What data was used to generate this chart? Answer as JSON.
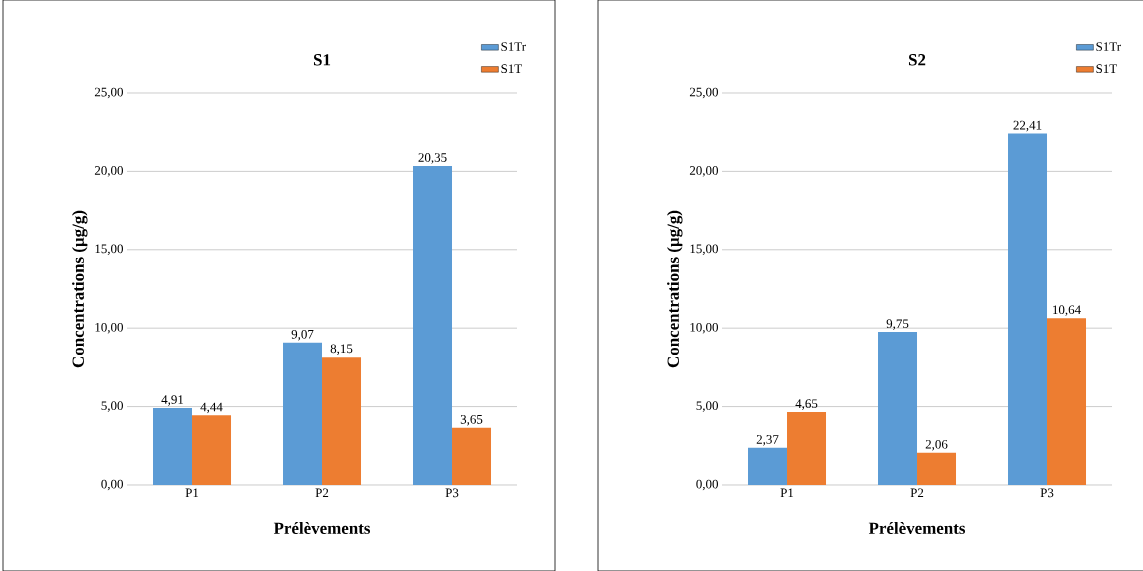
{
  "chart_data": [
    {
      "type": "bar",
      "title": "S1",
      "xlabel": "Prélèvements",
      "ylabel": "Concentrations (µg/g)",
      "categories": [
        "P1",
        "P2",
        "P3"
      ],
      "series": [
        {
          "name": "S1Tr",
          "color": "#5b9bd5",
          "values": [
            4.91,
            9.07,
            20.35
          ],
          "value_labels": [
            "4,91",
            "9,07",
            "20,35"
          ]
        },
        {
          "name": "S1T",
          "color": "#ed7d31",
          "values": [
            4.44,
            8.15,
            3.65
          ],
          "value_labels": [
            "4,44",
            "8,15",
            "3,65"
          ]
        }
      ],
      "ylim": [
        0,
        25
      ],
      "yticks": [
        {
          "value": 0,
          "label": "0,00"
        },
        {
          "value": 5,
          "label": "5,00"
        },
        {
          "value": 10,
          "label": "10,00"
        },
        {
          "value": 15,
          "label": "15,00"
        },
        {
          "value": 20,
          "label": "20,00"
        },
        {
          "value": 25,
          "label": "25,00"
        }
      ],
      "grid": "y",
      "legend": "top right"
    },
    {
      "type": "bar",
      "title": "S2",
      "xlabel": "Prélèvements",
      "ylabel": "Concentrations (µg/g)",
      "categories": [
        "P1",
        "P2",
        "P3"
      ],
      "series": [
        {
          "name": "S1Tr",
          "color": "#5b9bd5",
          "values": [
            2.37,
            9.75,
            22.41
          ],
          "value_labels": [
            "2,37",
            "9,75",
            "22,41"
          ]
        },
        {
          "name": "S1T",
          "color": "#ed7d31",
          "values": [
            4.65,
            2.06,
            10.64
          ],
          "value_labels": [
            "4,65",
            "2,06",
            "10,64"
          ]
        }
      ],
      "ylim": [
        0,
        25
      ],
      "yticks": [
        {
          "value": 0,
          "label": "0,00"
        },
        {
          "value": 5,
          "label": "5,00"
        },
        {
          "value": 10,
          "label": "10,00"
        },
        {
          "value": 15,
          "label": "15,00"
        },
        {
          "value": 20,
          "label": "20,00"
        },
        {
          "value": 25,
          "label": "25,00"
        }
      ],
      "grid": "y",
      "legend": "top right"
    }
  ]
}
